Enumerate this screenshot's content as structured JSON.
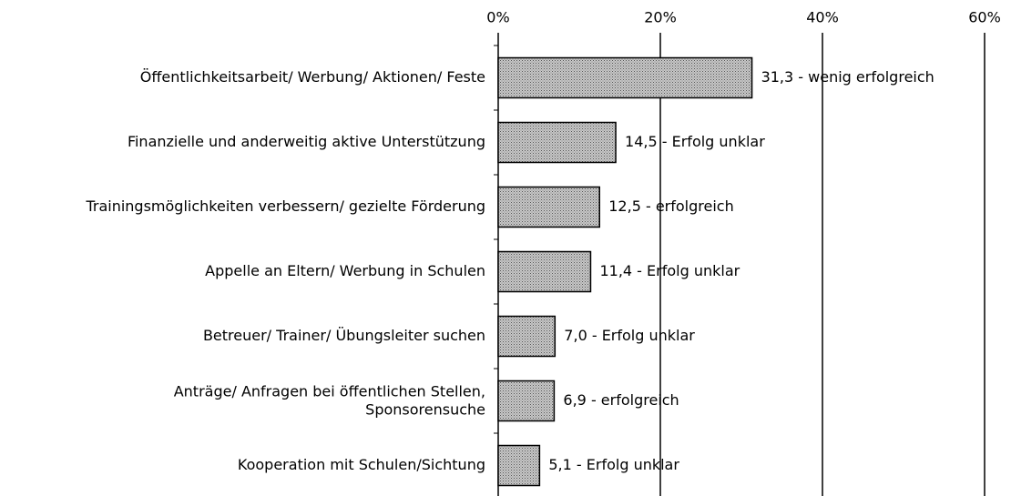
{
  "chart_data": {
    "type": "bar",
    "orientation": "horizontal",
    "categories": [
      "Öffentlichkeitsarbeit/ Werbung/ Aktionen/ Feste",
      "Finanzielle und anderweitig aktive Unterstützung",
      "Trainingsmöglichkeiten verbessern/ gezielte Förderung",
      "Appelle an Eltern/ Werbung in Schulen",
      "Betreuer/ Trainer/ Übungsleiter suchen",
      "Anträge/ Anfragen bei öffentlichen Stellen,\nSponsorensuche",
      "Kooperation mit Schulen/Sichtung"
    ],
    "values": [
      31.3,
      14.5,
      12.5,
      11.4,
      7.0,
      6.9,
      5.1
    ],
    "value_labels": [
      "31,3 - wenig erfolgreich",
      "14,5 - Erfolg unklar",
      "12,5 - erfolgreich",
      "11,4 - Erfolg unklar",
      "7,0 - Erfolg unklar",
      "6,9 - erfolgreich",
      "5,1 - Erfolg unklar"
    ],
    "color": "#a6a6a6",
    "xlim": [
      0,
      60
    ],
    "xticks": [
      {
        "value": 0,
        "label": "0%"
      },
      {
        "value": 20,
        "label": "20%"
      },
      {
        "value": 40,
        "label": "40%"
      },
      {
        "value": 60,
        "label": "60%"
      }
    ],
    "grid": true
  }
}
